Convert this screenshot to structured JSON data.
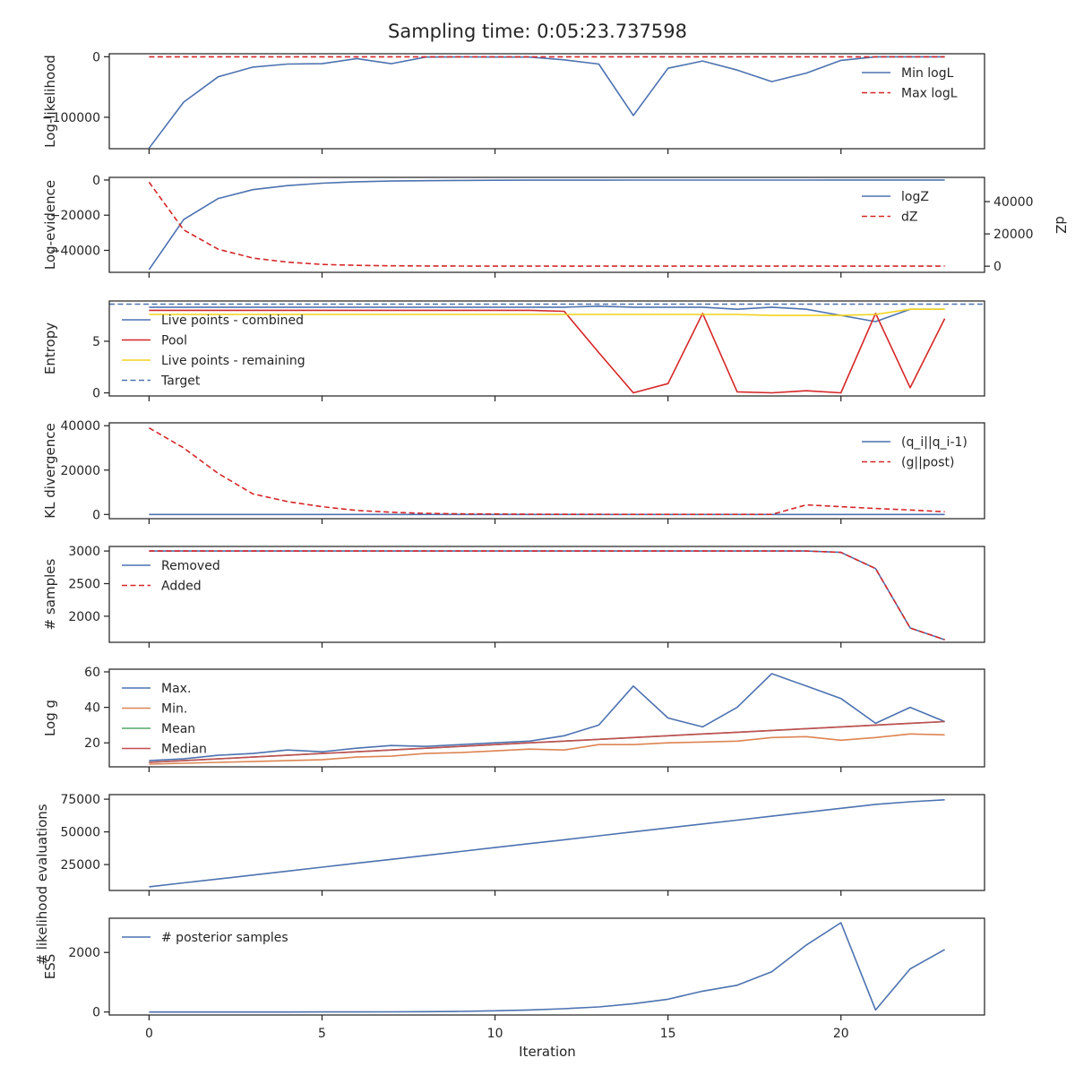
{
  "figure": {
    "title": "Sampling time: 0:05:23.737598",
    "xlabel": "Iteration",
    "xlim": [
      -1.15,
      24.15
    ],
    "xticks": [
      0,
      5,
      10,
      15,
      20
    ]
  },
  "colors": {
    "blue": "#4c72b0",
    "red": "#d62728",
    "orange": "#dd8452",
    "green": "#55a868",
    "brick": "#c44e52",
    "yellow": "#f2d21b"
  },
  "chart_data": [
    {
      "type": "line",
      "id": "loglike",
      "ylabel": "Log-likelihood",
      "ylim": [
        -152000,
        5000
      ],
      "yticks": [
        0,
        -100000
      ],
      "ytick_labels": [
        "0",
        "−100000"
      ],
      "legend_position": "right",
      "x": [
        0,
        1,
        2,
        3,
        4,
        5,
        6,
        7,
        8,
        9,
        10,
        11,
        12,
        13,
        14,
        15,
        16,
        17,
        18,
        19,
        20,
        21,
        22,
        23
      ],
      "series": [
        {
          "name": "Min logL",
          "style": "solid",
          "color": "blue",
          "values": [
            -151000,
            -75000,
            -33000,
            -17000,
            -12000,
            -11500,
            -3000,
            -11500,
            -500,
            -200,
            -500,
            -500,
            -5000,
            -12000,
            -97000,
            -19000,
            -7000,
            -22000,
            -41000,
            -27000,
            -6000,
            0,
            -50,
            -50
          ]
        },
        {
          "name": "Max logL",
          "style": "dashed",
          "color": "red",
          "values": [
            0,
            0,
            0,
            0,
            0,
            0,
            0,
            0,
            0,
            0,
            0,
            0,
            0,
            0,
            0,
            0,
            0,
            0,
            0,
            0,
            0,
            0,
            0,
            0
          ]
        }
      ]
    },
    {
      "type": "line",
      "id": "logevidence",
      "ylabel": "Log-evidence",
      "ylim": [
        -52500,
        1500
      ],
      "yticks": [
        0,
        -20000,
        -40000
      ],
      "ytick_labels": [
        "0",
        "−20000",
        "−40000"
      ],
      "ylabel_right": "dZ",
      "ylim_right": [
        -3800,
        55000
      ],
      "yticks_right": [
        0,
        20000,
        40000
      ],
      "ytick_labels_right": [
        "0",
        "20000",
        "40000"
      ],
      "legend_position": "right",
      "x": [
        0,
        1,
        2,
        3,
        4,
        5,
        6,
        7,
        8,
        9,
        10,
        11,
        12,
        13,
        14,
        15,
        16,
        17,
        18,
        19,
        20,
        21,
        22,
        23
      ],
      "series": [
        {
          "name": "logZ",
          "style": "solid",
          "color": "blue",
          "axis": "left",
          "values": [
            -51000,
            -22500,
            -10500,
            -5500,
            -3200,
            -1800,
            -1000,
            -600,
            -400,
            -250,
            -150,
            -100,
            -80,
            -60,
            -50,
            -40,
            -30,
            -20,
            -10,
            -5,
            0,
            0,
            0,
            0
          ]
        },
        {
          "name": "dZ",
          "style": "dashed",
          "color": "red",
          "axis": "right",
          "values": [
            52000,
            22500,
            10500,
            5000,
            2500,
            1100,
            500,
            230,
            120,
            60,
            30,
            15,
            10,
            5,
            4,
            3,
            2,
            1,
            1,
            0,
            0,
            0,
            0,
            0
          ]
        }
      ]
    },
    {
      "type": "line",
      "id": "entropy",
      "ylabel": "Entropy",
      "ylim": [
        -0.3,
        8.9
      ],
      "yticks": [
        0,
        5
      ],
      "ytick_labels": [
        "0",
        "5"
      ],
      "legend_position": "left",
      "x": [
        0,
        1,
        2,
        3,
        4,
        5,
        6,
        7,
        8,
        9,
        10,
        11,
        12,
        13,
        14,
        15,
        16,
        17,
        18,
        19,
        20,
        21,
        22,
        23
      ],
      "series": [
        {
          "name": "Live points - combined",
          "style": "solid",
          "color": "blue",
          "values": [
            8.3,
            8.3,
            8.3,
            8.3,
            8.3,
            8.3,
            8.3,
            8.3,
            8.3,
            8.3,
            8.3,
            8.3,
            8.3,
            8.4,
            8.3,
            8.3,
            8.3,
            8.1,
            8.3,
            8.1,
            7.5,
            6.9,
            8.1,
            8.1
          ]
        },
        {
          "name": "Pool",
          "style": "solid",
          "color": "red",
          "values": [
            8.0,
            8.0,
            8.0,
            8.0,
            8.0,
            8.0,
            8.0,
            8.0,
            8.0,
            8.0,
            8.0,
            8.0,
            7.9,
            3.9,
            0.0,
            0.9,
            7.7,
            0.1,
            0.0,
            0.2,
            0.0,
            7.7,
            0.5,
            7.2
          ]
        },
        {
          "name": "Live points - remaining",
          "style": "solid",
          "color": "yellow",
          "values": [
            7.6,
            7.6,
            7.6,
            7.6,
            7.6,
            7.6,
            7.6,
            7.6,
            7.6,
            7.6,
            7.6,
            7.6,
            7.6,
            7.6,
            7.6,
            7.6,
            7.6,
            7.6,
            7.5,
            7.5,
            7.5,
            7.6,
            8.1,
            8.1
          ]
        },
        {
          "name": "Target",
          "style": "dashed",
          "color": "blue",
          "values": [
            8.6,
            8.6,
            8.6,
            8.6,
            8.6,
            8.6,
            8.6,
            8.6,
            8.6,
            8.6,
            8.6,
            8.6,
            8.6,
            8.6,
            8.6,
            8.6,
            8.6,
            8.6,
            8.6,
            8.6,
            8.6,
            8.6,
            8.6,
            8.6
          ],
          "extend": true
        }
      ]
    },
    {
      "type": "line",
      "id": "kl",
      "ylabel": "KL divergence",
      "ylim": [
        -1900,
        41300
      ],
      "yticks": [
        0,
        20000,
        40000
      ],
      "ytick_labels": [
        "0",
        "20000",
        "40000"
      ],
      "legend_position": "right",
      "x": [
        0,
        1,
        2,
        3,
        4,
        5,
        6,
        7,
        8,
        9,
        10,
        11,
        12,
        13,
        14,
        15,
        16,
        17,
        18,
        19,
        20,
        21,
        22,
        23
      ],
      "series": [
        {
          "name": "(q_i||q_i-1)",
          "style": "solid",
          "color": "blue",
          "values": [
            0,
            0,
            0,
            0,
            0,
            0,
            0,
            0,
            0,
            0,
            0,
            0,
            0,
            0,
            0,
            0,
            0,
            0,
            0,
            0,
            0,
            0,
            0,
            0
          ]
        },
        {
          "name": "(g||post)",
          "style": "dashed",
          "color": "red",
          "values": [
            39000,
            30000,
            18500,
            9300,
            5800,
            3500,
            1800,
            1000,
            500,
            300,
            200,
            100,
            80,
            60,
            50,
            40,
            30,
            20,
            20,
            4300,
            3500,
            2700,
            2000,
            1200
          ]
        }
      ]
    },
    {
      "type": "line",
      "id": "samples",
      "ylabel": "# samples",
      "ylim": [
        1600,
        3070
      ],
      "yticks": [
        3000,
        2500,
        2000
      ],
      "ytick_labels": [
        "3000",
        "2500",
        "2000"
      ],
      "legend_position": "left",
      "x": [
        0,
        1,
        2,
        3,
        4,
        5,
        6,
        7,
        8,
        9,
        10,
        11,
        12,
        13,
        14,
        15,
        16,
        17,
        18,
        19,
        20,
        21,
        22,
        23
      ],
      "series": [
        {
          "name": "Removed",
          "style": "solid",
          "color": "blue",
          "values": [
            3000,
            3000,
            3000,
            3000,
            3000,
            3000,
            3000,
            3000,
            3000,
            3000,
            3000,
            3000,
            3000,
            3000,
            3000,
            3000,
            3000,
            3000,
            3000,
            3000,
            2980,
            2730,
            1820,
            1640
          ]
        },
        {
          "name": "Added",
          "style": "dashed",
          "color": "red",
          "values": [
            3000,
            3000,
            3000,
            3000,
            3000,
            3000,
            3000,
            3000,
            3000,
            3000,
            3000,
            3000,
            3000,
            3000,
            3000,
            3000,
            3000,
            3000,
            3000,
            3000,
            2980,
            2730,
            1820,
            1640
          ]
        }
      ]
    },
    {
      "type": "line",
      "id": "logg",
      "ylabel": "Log g",
      "ylim": [
        6.5,
        61.5
      ],
      "yticks": [
        60,
        40,
        20
      ],
      "ytick_labels": [
        "60",
        "40",
        "20"
      ],
      "legend_position": "left",
      "x": [
        0,
        1,
        2,
        3,
        4,
        5,
        6,
        7,
        8,
        9,
        10,
        11,
        12,
        13,
        14,
        15,
        16,
        17,
        18,
        19,
        20,
        21,
        22,
        23
      ],
      "series": [
        {
          "name": "Max.",
          "style": "solid",
          "color": "blue",
          "values": [
            10,
            11,
            13,
            14,
            16,
            15,
            17,
            18.5,
            18,
            19,
            20,
            21,
            24,
            30,
            52,
            34,
            29,
            40,
            59,
            52,
            45,
            31,
            40,
            32
          ]
        },
        {
          "name": "Min.",
          "style": "solid",
          "color": "orange",
          "values": [
            8,
            8.5,
            9,
            9.5,
            10,
            10.5,
            12,
            12.5,
            14,
            14.5,
            15.5,
            16.5,
            16,
            19,
            19,
            20,
            20.5,
            21,
            23,
            23.5,
            21.5,
            23,
            25,
            24.5
          ]
        },
        {
          "name": "Mean",
          "style": "solid",
          "color": "green",
          "values": [
            9,
            10,
            11,
            12,
            13,
            14,
            15,
            16,
            17,
            18,
            19,
            20,
            21,
            22,
            23,
            24,
            25,
            26,
            27,
            28,
            29,
            30,
            31,
            32
          ]
        },
        {
          "name": "Median",
          "style": "solid",
          "color": "brick",
          "values": [
            9,
            10,
            11,
            12,
            13,
            14,
            15,
            16,
            17,
            18,
            19,
            20,
            21,
            22,
            23,
            24,
            25,
            26,
            27,
            28,
            29,
            30,
            31,
            32
          ]
        }
      ]
    },
    {
      "type": "line",
      "id": "nlike",
      "ylabel": "# likelihood evaluations",
      "ylim": [
        5200,
        78500
      ],
      "yticks": [
        75000,
        50000,
        25000
      ],
      "ytick_labels": [
        "75000",
        "50000",
        "25000"
      ],
      "legend_position": "none",
      "x": [
        0,
        1,
        2,
        3,
        4,
        5,
        6,
        7,
        8,
        9,
        10,
        11,
        12,
        13,
        14,
        15,
        16,
        17,
        18,
        19,
        20,
        21,
        22,
        23
      ],
      "series": [
        {
          "name": "",
          "style": "solid",
          "color": "blue",
          "values": [
            8000,
            11000,
            14000,
            17000,
            20000,
            23000,
            26000,
            29000,
            32000,
            35000,
            38000,
            41000,
            44000,
            47000,
            50000,
            53000,
            56000,
            59000,
            62000,
            65000,
            68000,
            71000,
            73000,
            74500
          ]
        }
      ]
    },
    {
      "type": "line",
      "id": "ess",
      "ylabel": "ESS",
      "ylim": [
        -100,
        3150
      ],
      "yticks": [
        2000,
        0
      ],
      "ytick_labels": [
        "2000",
        "0"
      ],
      "legend_position": "left",
      "x": [
        0,
        1,
        2,
        3,
        4,
        5,
        6,
        7,
        8,
        9,
        10,
        11,
        12,
        13,
        14,
        15,
        16,
        17,
        18,
        19,
        20,
        21,
        22,
        23
      ],
      "series": [
        {
          "name": "# posterior samples",
          "style": "solid",
          "color": "blue",
          "values": [
            0,
            0,
            0,
            0,
            0,
            1,
            2,
            5,
            10,
            20,
            40,
            70,
            110,
            170,
            280,
            430,
            700,
            900,
            1350,
            2250,
            3000,
            70,
            1450,
            2100
          ]
        }
      ]
    }
  ]
}
